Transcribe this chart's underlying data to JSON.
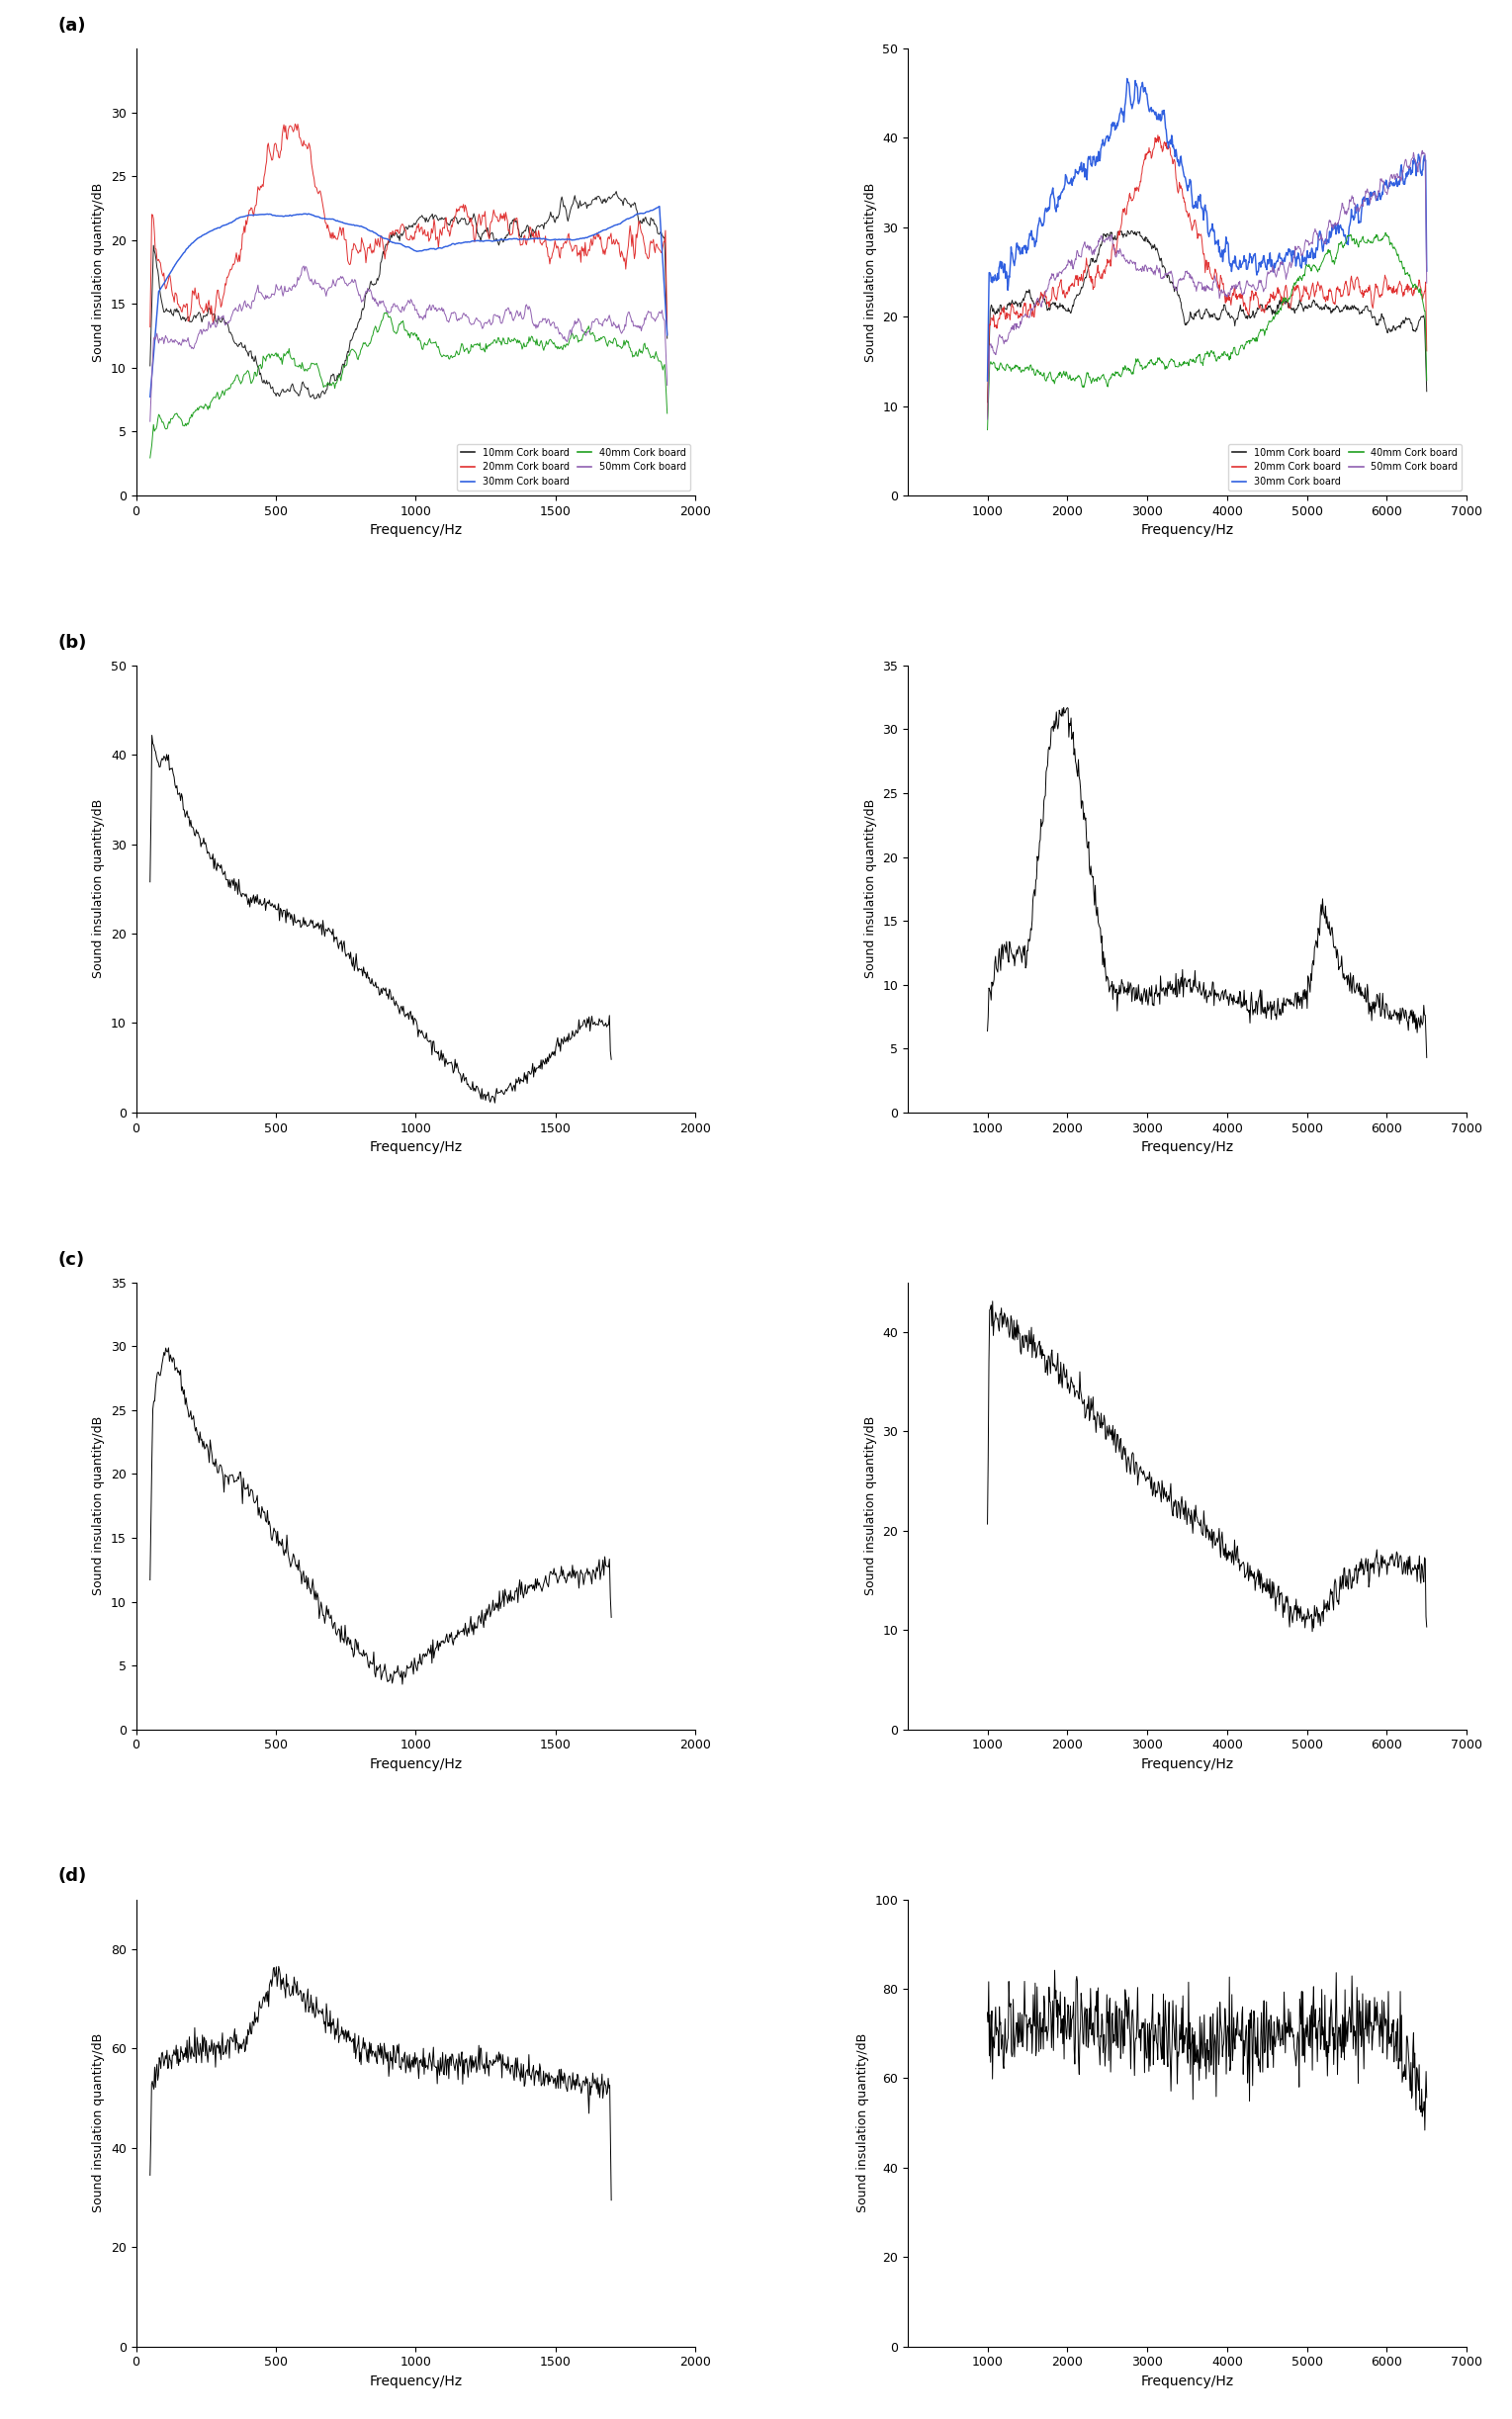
{
  "fig_width": 15.29,
  "fig_height": 24.46,
  "panel_labels": [
    "(a)",
    "(b)",
    "(c)",
    "(d)"
  ],
  "ylabel": "Sound insulation quantity/dB",
  "xlabel": "Frequency/Hz",
  "legend_labels": [
    "10mm Cork board",
    "20mm Cork board",
    "30mm Cork board",
    "40mm Cork board",
    "50mm Cork board"
  ],
  "legend_colors": [
    "#222222",
    "#e03030",
    "#3060e0",
    "#20a020",
    "#9060b0"
  ],
  "subplots": [
    {
      "row": 0,
      "col": 0,
      "xlim": [
        0,
        2000
      ],
      "ylim": [
        0,
        35
      ],
      "yticks": [
        0,
        5,
        10,
        15,
        20,
        25,
        30
      ],
      "xticks": [
        0,
        500,
        1000,
        1500,
        2000
      ],
      "has_legend": true,
      "panel": "(a)"
    },
    {
      "row": 0,
      "col": 1,
      "xlim": [
        0,
        7000
      ],
      "ylim": [
        0,
        50
      ],
      "yticks": [
        0,
        10,
        20,
        30,
        40,
        50
      ],
      "xticks": [
        1000,
        2000,
        3000,
        4000,
        5000,
        6000,
        7000
      ],
      "has_legend": true,
      "panel": ""
    },
    {
      "row": 1,
      "col": 0,
      "xlim": [
        0,
        2000
      ],
      "ylim": [
        0,
        50
      ],
      "yticks": [
        0,
        10,
        20,
        30,
        40,
        50
      ],
      "xticks": [
        0,
        500,
        1000,
        1500,
        2000
      ],
      "has_legend": false,
      "panel": "(b)"
    },
    {
      "row": 1,
      "col": 1,
      "xlim": [
        0,
        7000
      ],
      "ylim": [
        0,
        35
      ],
      "yticks": [
        0,
        5,
        10,
        15,
        20,
        25,
        30,
        35
      ],
      "xticks": [
        1000,
        2000,
        3000,
        4000,
        5000,
        6000,
        7000
      ],
      "has_legend": false,
      "panel": ""
    },
    {
      "row": 2,
      "col": 0,
      "xlim": [
        0,
        2000
      ],
      "ylim": [
        0,
        35
      ],
      "yticks": [
        0,
        5,
        10,
        15,
        20,
        25,
        30,
        35
      ],
      "xticks": [
        0,
        500,
        1000,
        1500,
        2000
      ],
      "has_legend": false,
      "panel": "(c)"
    },
    {
      "row": 2,
      "col": 1,
      "xlim": [
        0,
        7000
      ],
      "ylim": [
        0,
        45
      ],
      "yticks": [
        0,
        10,
        20,
        30,
        40
      ],
      "xticks": [
        1000,
        2000,
        3000,
        4000,
        5000,
        6000,
        7000
      ],
      "has_legend": false,
      "panel": ""
    },
    {
      "row": 3,
      "col": 0,
      "xlim": [
        0,
        2000
      ],
      "ylim": [
        0,
        90
      ],
      "yticks": [
        0,
        20,
        40,
        60,
        80
      ],
      "xticks": [
        0,
        500,
        1000,
        1500,
        2000
      ],
      "has_legend": false,
      "panel": "(d)"
    },
    {
      "row": 3,
      "col": 1,
      "xlim": [
        0,
        7000
      ],
      "ylim": [
        0,
        100
      ],
      "yticks": [
        0,
        20,
        40,
        60,
        80,
        100
      ],
      "xticks": [
        1000,
        2000,
        3000,
        4000,
        5000,
        6000,
        7000
      ],
      "has_legend": false,
      "panel": ""
    }
  ]
}
